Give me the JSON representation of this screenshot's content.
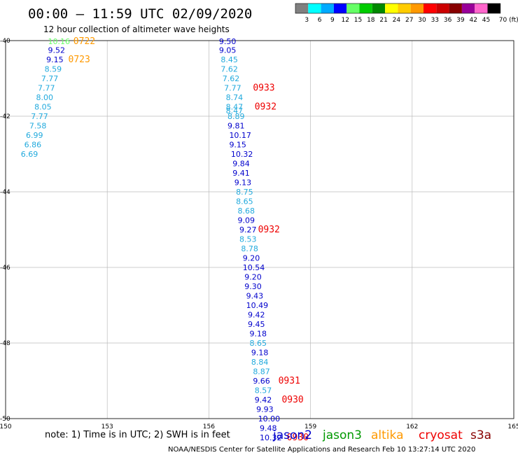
{
  "title": "00:00 – 11:59 UTC 02/09/2020",
  "subtitle": "12 hour collection of altimeter wave heights",
  "note": "note:  1) Time is in UTC; 2) SWH is in feet",
  "footer": "NOAA/NESDIS Center for Satellite Applications and Research    Feb 10 13:27:14 UTC 2020",
  "colors": {
    "jason2": "#0000cc",
    "jason3": "#009900",
    "altika": "#ff9900",
    "cryosat": "#ee0000",
    "s3a": "#880000",
    "light_blue": "#22aadd",
    "light_green": "#66ff66"
  },
  "colorbar": {
    "labels": [
      "3",
      "6",
      "9",
      "12",
      "15",
      "18",
      "21",
      "24",
      "27",
      "30",
      "33",
      "36",
      "39",
      "42",
      "45",
      "70 (ft)"
    ],
    "colors": [
      "#808080",
      "#00ffff",
      "#00aaff",
      "#0000ff",
      "#66ff66",
      "#00cc00",
      "#008800",
      "#ffff00",
      "#ffcc00",
      "#ff9900",
      "#ff0000",
      "#cc0000",
      "#880000",
      "#990099",
      "#ff66cc",
      "#000000"
    ]
  },
  "legend": [
    {
      "name": "jason2",
      "color": "#0000cc"
    },
    {
      "name": "jason3",
      "color": "#009900"
    },
    {
      "name": "altika",
      "color": "#ff9900"
    },
    {
      "name": "cryosat",
      "color": "#ee0000"
    },
    {
      "name": "s3a",
      "color": "#880000"
    }
  ],
  "chart_data": {
    "type": "scatter",
    "title": "00:00 – 11:59 UTC 02/09/2020",
    "subtitle": "12 hour collection of altimeter wave heights",
    "xlim": [
      150,
      165
    ],
    "ylim": [
      -50,
      -40
    ],
    "x_ticks": [
      "150",
      "153",
      "156",
      "159",
      "162",
      "165"
    ],
    "y_ticks": [
      "-40",
      "-42",
      "-44",
      "-46",
      "-48",
      "-50"
    ],
    "grid": true,
    "swh_labels": [
      {
        "lon": 151.25,
        "lat": -40.02,
        "text": "10.16",
        "color": "#66ff66"
      },
      {
        "lon": 151.25,
        "lat": -40.25,
        "text": "9.52",
        "color": "#0000cc"
      },
      {
        "lon": 151.2,
        "lat": -40.5,
        "text": "9.15",
        "color": "#0000cc"
      },
      {
        "lon": 151.15,
        "lat": -40.75,
        "text": "8.59",
        "color": "#22aadd"
      },
      {
        "lon": 151.05,
        "lat": -41.0,
        "text": "7.77",
        "color": "#22aadd"
      },
      {
        "lon": 150.95,
        "lat": -41.25,
        "text": "7.77",
        "color": "#22aadd"
      },
      {
        "lon": 150.9,
        "lat": -41.5,
        "text": "8.00",
        "color": "#22aadd"
      },
      {
        "lon": 150.85,
        "lat": -41.75,
        "text": "8.05",
        "color": "#22aadd"
      },
      {
        "lon": 150.75,
        "lat": -42.0,
        "text": "7.77",
        "color": "#22aadd"
      },
      {
        "lon": 150.7,
        "lat": -42.25,
        "text": "7.58",
        "color": "#22aadd"
      },
      {
        "lon": 150.6,
        "lat": -42.5,
        "text": "6.99",
        "color": "#22aadd"
      },
      {
        "lon": 150.55,
        "lat": -42.75,
        "text": "6.86",
        "color": "#22aadd"
      },
      {
        "lon": 150.45,
        "lat": -43.0,
        "text": "6.69",
        "color": "#22aadd"
      },
      {
        "lon": 156.3,
        "lat": -40.02,
        "text": "9.50",
        "color": "#0000cc"
      },
      {
        "lon": 156.3,
        "lat": -40.25,
        "text": "9.05",
        "color": "#0000cc"
      },
      {
        "lon": 156.35,
        "lat": -40.5,
        "text": "8.45",
        "color": "#22aadd"
      },
      {
        "lon": 156.35,
        "lat": -40.75,
        "text": "7.62",
        "color": "#22aadd"
      },
      {
        "lon": 156.4,
        "lat": -41.0,
        "text": "7.62",
        "color": "#22aadd"
      },
      {
        "lon": 156.45,
        "lat": -41.25,
        "text": "7.77",
        "color": "#22aadd"
      },
      {
        "lon": 156.5,
        "lat": -41.5,
        "text": "8.74",
        "color": "#22aadd"
      },
      {
        "lon": 156.5,
        "lat": -41.75,
        "text": "8.47",
        "color": "#22aadd"
      },
      {
        "lon": 156.5,
        "lat": -41.85,
        "text": "8.47",
        "color": "#22aadd"
      },
      {
        "lon": 156.55,
        "lat": -42.0,
        "text": "8.89",
        "color": "#22aadd"
      },
      {
        "lon": 156.55,
        "lat": -42.25,
        "text": "9.81",
        "color": "#0000cc"
      },
      {
        "lon": 156.6,
        "lat": -42.5,
        "text": "10.17",
        "color": "#0000cc"
      },
      {
        "lon": 156.6,
        "lat": -42.75,
        "text": "9.15",
        "color": "#0000cc"
      },
      {
        "lon": 156.65,
        "lat": -43.0,
        "text": "10.32",
        "color": "#0000cc"
      },
      {
        "lon": 156.7,
        "lat": -43.25,
        "text": "9.84",
        "color": "#0000cc"
      },
      {
        "lon": 156.7,
        "lat": -43.5,
        "text": "9.41",
        "color": "#0000cc"
      },
      {
        "lon": 156.75,
        "lat": -43.75,
        "text": "9.13",
        "color": "#0000cc"
      },
      {
        "lon": 156.8,
        "lat": -44.0,
        "text": "8.75",
        "color": "#22aadd"
      },
      {
        "lon": 156.8,
        "lat": -44.25,
        "text": "8.65",
        "color": "#22aadd"
      },
      {
        "lon": 156.85,
        "lat": -44.5,
        "text": "8.68",
        "color": "#22aadd"
      },
      {
        "lon": 156.85,
        "lat": -44.75,
        "text": "9.09",
        "color": "#0000cc"
      },
      {
        "lon": 156.9,
        "lat": -45.0,
        "text": "9.27",
        "color": "#0000cc"
      },
      {
        "lon": 156.9,
        "lat": -45.25,
        "text": "8.53",
        "color": "#22aadd"
      },
      {
        "lon": 156.95,
        "lat": -45.5,
        "text": "8.78",
        "color": "#22aadd"
      },
      {
        "lon": 157.0,
        "lat": -45.75,
        "text": "9.20",
        "color": "#0000cc"
      },
      {
        "lon": 157.0,
        "lat": -46.0,
        "text": "10.54",
        "color": "#0000cc"
      },
      {
        "lon": 157.05,
        "lat": -46.25,
        "text": "9.20",
        "color": "#0000cc"
      },
      {
        "lon": 157.05,
        "lat": -46.5,
        "text": "9.30",
        "color": "#0000cc"
      },
      {
        "lon": 157.1,
        "lat": -46.75,
        "text": "9.43",
        "color": "#0000cc"
      },
      {
        "lon": 157.1,
        "lat": -47.0,
        "text": "10.49",
        "color": "#0000cc"
      },
      {
        "lon": 157.15,
        "lat": -47.25,
        "text": "9.42",
        "color": "#0000cc"
      },
      {
        "lon": 157.15,
        "lat": -47.5,
        "text": "9.45",
        "color": "#0000cc"
      },
      {
        "lon": 157.2,
        "lat": -47.75,
        "text": "9.18",
        "color": "#0000cc"
      },
      {
        "lon": 157.2,
        "lat": -48.0,
        "text": "8.65",
        "color": "#22aadd"
      },
      {
        "lon": 157.25,
        "lat": -48.25,
        "text": "9.18",
        "color": "#0000cc"
      },
      {
        "lon": 157.25,
        "lat": -48.5,
        "text": "8.84",
        "color": "#22aadd"
      },
      {
        "lon": 157.3,
        "lat": -48.75,
        "text": "8.87",
        "color": "#22aadd"
      },
      {
        "lon": 157.3,
        "lat": -49.0,
        "text": "9.66",
        "color": "#0000cc"
      },
      {
        "lon": 157.35,
        "lat": -49.25,
        "text": "8.57",
        "color": "#22aadd"
      },
      {
        "lon": 157.35,
        "lat": -49.5,
        "text": "9.42",
        "color": "#0000cc"
      },
      {
        "lon": 157.4,
        "lat": -49.75,
        "text": "9.93",
        "color": "#0000cc"
      },
      {
        "lon": 157.45,
        "lat": -50.0,
        "text": "10.00",
        "color": "#0000cc"
      },
      {
        "lon": 157.5,
        "lat": -50.25,
        "text": "9.48",
        "color": "#0000cc"
      },
      {
        "lon": 157.5,
        "lat": -50.5,
        "text": "10.32",
        "color": "#0000cc"
      }
    ],
    "time_labels": [
      {
        "lon": 152.0,
        "lat": -40.02,
        "text": "0722",
        "color": "#ff9900"
      },
      {
        "lon": 151.85,
        "lat": -40.5,
        "text": "0723",
        "color": "#ff9900"
      },
      {
        "lon": 157.3,
        "lat": -41.25,
        "text": "0933",
        "color": "#ee0000"
      },
      {
        "lon": 157.35,
        "lat": -41.75,
        "text": "0932",
        "color": "#ee0000"
      },
      {
        "lon": 157.45,
        "lat": -45.0,
        "text": "0932",
        "color": "#ee0000"
      },
      {
        "lon": 158.05,
        "lat": -49.0,
        "text": "0931",
        "color": "#ee0000"
      },
      {
        "lon": 158.15,
        "lat": -49.5,
        "text": "0930",
        "color": "#ee0000"
      },
      {
        "lon": 158.3,
        "lat": -50.5,
        "text": "0930",
        "color": "#ee0000"
      }
    ]
  }
}
